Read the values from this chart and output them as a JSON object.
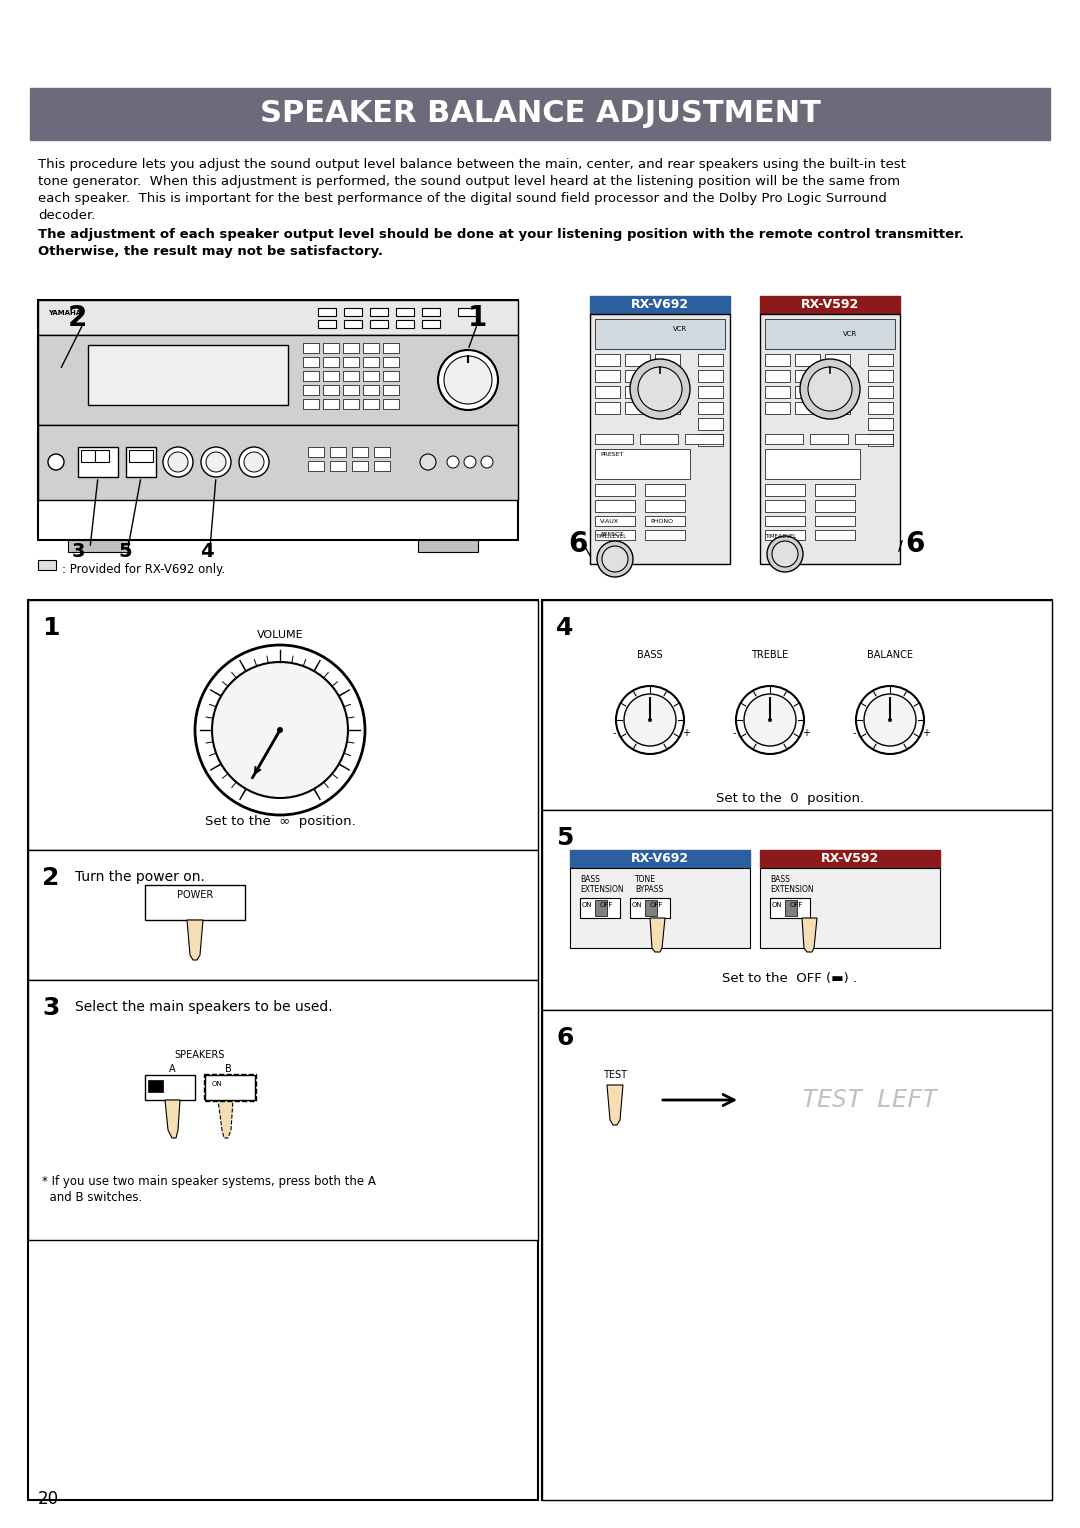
{
  "title": "SPEAKER BALANCE ADJUSTMENT",
  "title_bg": "#6b6b7b",
  "title_color": "#ffffff",
  "page_bg": "#ffffff",
  "page_number": "20",
  "body_text": "This procedure lets you adjust the sound output level balance between the main, center, and rear speakers using the built-in test\ntone generator.  When this adjustment is performed, the sound output level heard at the listening position will be the same from\neach speaker.  This is important for the best performance of the digital sound field processor and the Dolby Pro Logic Surround\ndecoder.",
  "bold_text": "The adjustment of each speaker output level should be done at your listening position with the remote control transmitter.\nOtherwise, the result may not be satisfactory.",
  "provided_note": ": Provided for RX-V692 only.",
  "step1_label": "1",
  "step1_text": "Set to the  ∞  position.",
  "step2_label": "2",
  "step2_text": "Turn the power on.",
  "step3_label": "3",
  "step3_text": "Select the main speakers to be used.",
  "step3_note": "* If you use two main speaker systems, press both the A\n  and B switches.",
  "step4_label": "4",
  "step4_text": "Set to the  0  position.",
  "step5_label": "5",
  "step5_text": "Set to the  OFF (▬) .",
  "step6_label": "6",
  "step6_text": "TEST LEFT",
  "rxv692_label": "RX-V692",
  "rxv592_label": "RX-V592",
  "rxv692_color": "#2c5f9e",
  "rxv592_color": "#8b1a1a",
  "text_color": "#000000",
  "font_family": "DejaVu Sans"
}
